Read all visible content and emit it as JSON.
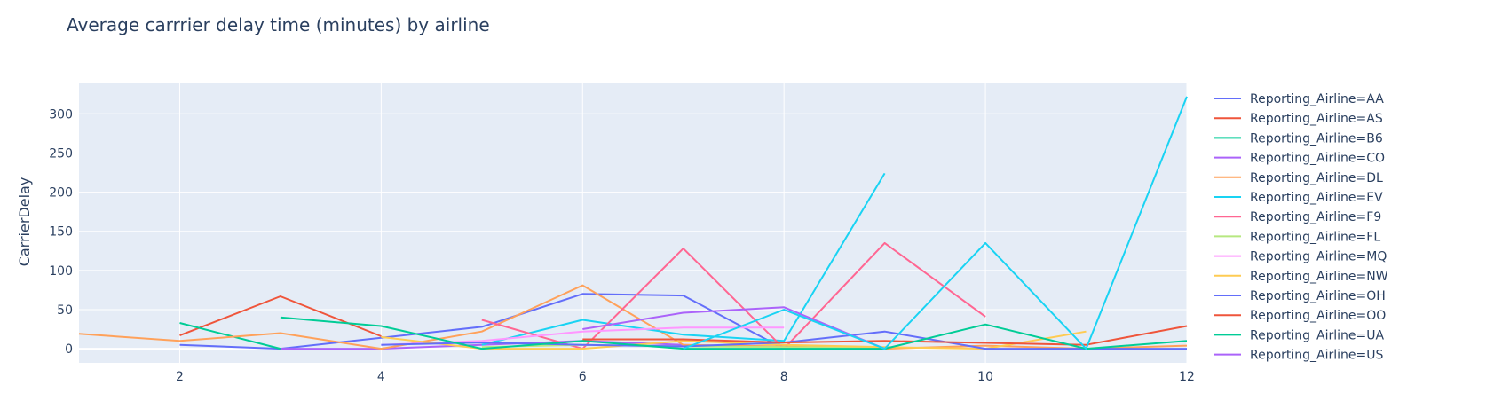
{
  "chart_data": {
    "type": "line",
    "title": "Average carrrier delay time (minutes) by airline",
    "xlabel": "",
    "ylabel": "CarrierDelay",
    "xlim": [
      1,
      12
    ],
    "ylim": [
      -18,
      340
    ],
    "x_ticks": [
      2,
      4,
      6,
      8,
      10,
      12
    ],
    "y_ticks": [
      0,
      50,
      100,
      150,
      200,
      250,
      300
    ],
    "grid": true,
    "legend_position": "right",
    "series": [
      {
        "name": "Reporting_Airline=AA",
        "color": "#636efa",
        "x": [
          2,
          3,
          5,
          6,
          7,
          8
        ],
        "y": [
          5,
          0,
          28,
          70,
          68,
          0
        ]
      },
      {
        "name": "Reporting_Airline=AS",
        "color": "#EF553B",
        "x": [
          2,
          3,
          4
        ],
        "y": [
          17,
          67,
          16
        ]
      },
      {
        "name": "Reporting_Airline=B6",
        "color": "#00cc96",
        "x": [
          2,
          3
        ],
        "y": [
          33,
          0
        ]
      },
      {
        "name": "Reporting_Airline=CO",
        "color": "#ab63fa",
        "x": [
          3,
          4,
          5,
          6,
          7,
          8,
          9
        ],
        "y": [
          0,
          0,
          5,
          10,
          5,
          2,
          0
        ]
      },
      {
        "name": "Reporting_Airline=DL",
        "color": "#FFA15A",
        "x": [
          1,
          2,
          3,
          4,
          5,
          6,
          7,
          8,
          9,
          10,
          11,
          12
        ],
        "y": [
          19,
          10,
          20,
          0,
          22,
          81,
          5,
          3,
          0,
          4,
          0,
          4
        ]
      },
      {
        "name": "Reporting_Airline=EV",
        "color": "#19d3f3",
        "x": [
          5,
          6,
          7,
          8,
          9
        ],
        "y": [
          5,
          37,
          18,
          10,
          224
        ]
      },
      {
        "name": "Reporting_Airline=F9",
        "color": "#FF6692",
        "x": [
          5,
          6,
          7,
          8,
          9,
          10
        ],
        "y": [
          37,
          0,
          128,
          0,
          135,
          41
        ]
      },
      {
        "name": "Reporting_Airline=FL",
        "color": "#B6E880",
        "x": [
          5,
          6,
          7,
          8,
          9
        ],
        "y": [
          2,
          5,
          3,
          2,
          1
        ]
      },
      {
        "name": "Reporting_Airline=MQ",
        "color": "#FF97FF",
        "x": [
          4,
          5,
          6,
          7,
          8
        ],
        "y": [
          5,
          10,
          22,
          27,
          27
        ]
      },
      {
        "name": "Reporting_Airline=NW",
        "color": "#FECB52",
        "x": [
          4,
          5,
          6,
          7,
          8,
          9,
          10,
          11
        ],
        "y": [
          15,
          0,
          0,
          10,
          5,
          2,
          0,
          22
        ]
      },
      {
        "name": "Reporting_Airline=OH",
        "color": "#636efa",
        "x": [
          4,
          5,
          6,
          7,
          8,
          9,
          10,
          11,
          12
        ],
        "y": [
          5,
          8,
          5,
          3,
          8,
          22,
          0,
          0,
          0
        ]
      },
      {
        "name": "Reporting_Airline=OO",
        "color": "#EF553B",
        "x": [
          6,
          7,
          8,
          9,
          11,
          12
        ],
        "y": [
          12,
          12,
          8,
          10,
          5,
          29
        ]
      },
      {
        "name": "Reporting_Airline=UA",
        "color": "#00cc96",
        "x": [
          3,
          4,
          5,
          6,
          7,
          8,
          9,
          10,
          11,
          12
        ],
        "y": [
          40,
          29,
          0,
          10,
          0,
          0,
          0,
          31,
          0,
          10
        ]
      },
      {
        "name": "Reporting_Airline=US",
        "color": "#ab63fa",
        "x": [
          6,
          7,
          8,
          9
        ],
        "y": [
          25,
          46,
          53,
          0
        ]
      },
      {
        "name": "",
        "color": "#19d3f3",
        "x": [
          7,
          8,
          9,
          10,
          11,
          12
        ],
        "y": [
          0,
          50,
          0,
          135,
          0,
          322
        ]
      }
    ]
  }
}
